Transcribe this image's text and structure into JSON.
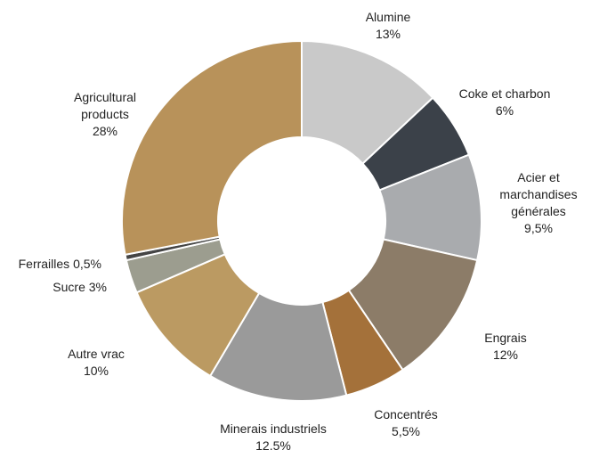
{
  "chart_data": {
    "type": "donut",
    "categories": [
      "Alumine",
      "Coke et charbon",
      "Acier et marchandises générales",
      "Engrais",
      "Concentrés",
      "Minerais industriels",
      "Autre vrac",
      "Sucre",
      "Ferrailles",
      "Agricultural products"
    ],
    "values": [
      13,
      6,
      9.5,
      12,
      5.5,
      12.5,
      10,
      3,
      0.5,
      28
    ],
    "value_labels": [
      "13%",
      "6%",
      "9,5%",
      "12%",
      "5,5%",
      "12.5%",
      "10%",
      "3%",
      "0,5%",
      "28%"
    ],
    "colors": [
      "#c9c9c9",
      "#3b4149",
      "#a9abae",
      "#8c7c68",
      "#a4713a",
      "#9a9a9a",
      "#bb9a62",
      "#9c9d8f",
      "#454545",
      "#b8925a"
    ]
  }
}
